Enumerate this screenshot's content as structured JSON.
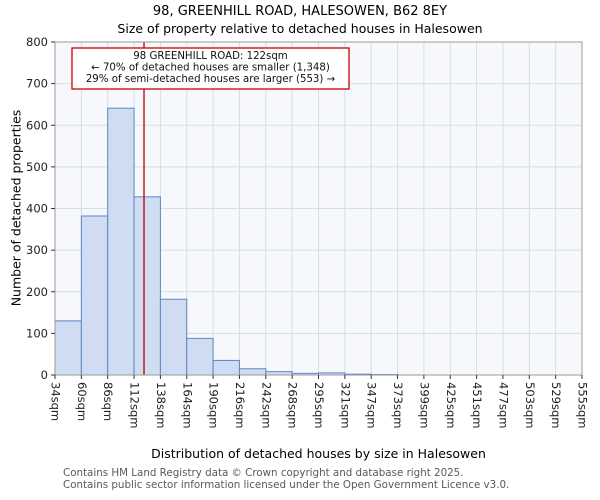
{
  "chart_data": {
    "type": "bar",
    "subtype": "histogram",
    "title": "98, GREENHILL ROAD, HALESOWEN, B62 8EY",
    "subtitle": "Size of property relative to detached houses in Halesowen",
    "xlabel": "Distribution of detached houses by size in Halesowen",
    "ylabel": "Number of detached properties",
    "ylim": [
      0,
      800
    ],
    "ytick_step": 100,
    "yticks": [
      0,
      100,
      200,
      300,
      400,
      500,
      600,
      700,
      800
    ],
    "x_tick_labels": [
      "34sqm",
      "60sqm",
      "86sqm",
      "112sqm",
      "138sqm",
      "164sqm",
      "190sqm",
      "216sqm",
      "242sqm",
      "268sqm",
      "295sqm",
      "321sqm",
      "347sqm",
      "373sqm",
      "399sqm",
      "425sqm",
      "451sqm",
      "477sqm",
      "503sqm",
      "529sqm",
      "555sqm"
    ],
    "bin_edges_sqm": [
      34,
      60,
      86,
      112,
      138,
      164,
      190,
      216,
      242,
      268,
      295,
      321,
      347,
      373,
      399,
      425,
      451,
      477,
      503,
      529,
      555
    ],
    "values": [
      130,
      382,
      641,
      428,
      182,
      88,
      35,
      15,
      8,
      4,
      5,
      2,
      1,
      0,
      0,
      0,
      0,
      0,
      0,
      0
    ],
    "grid": true,
    "marker": {
      "value_sqm": 122
    },
    "annotation": {
      "lines": [
        "98 GREENHILL ROAD: 122sqm",
        "← 70% of detached houses are smaller (1,348)",
        "29% of semi-detached houses are larger (553) →"
      ]
    },
    "colors": {
      "bar_fill": "#cfdcf1",
      "bar_stroke": "#5b87c5",
      "marker_line": "#b40000",
      "annotation_border": "#cc0000",
      "grid": "#d7dce5",
      "plot_bg": "#f6f8fc",
      "plot_border": "#9a9a9a"
    }
  },
  "footer": {
    "line1": "Contains HM Land Registry data © Crown copyright and database right 2025.",
    "line2": "Contains public sector information licensed under the Open Government Licence v3.0."
  }
}
